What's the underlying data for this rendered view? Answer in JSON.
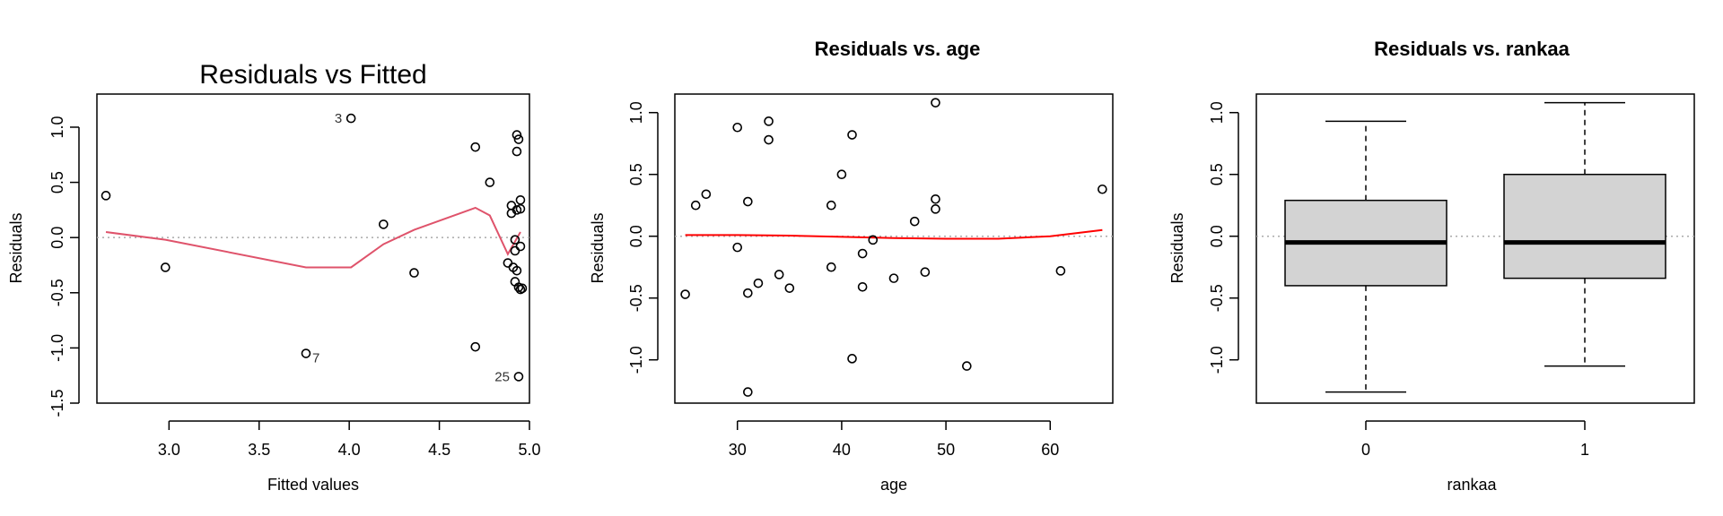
{
  "chart_data": [
    {
      "type": "scatter",
      "title": "Residuals vs Fitted",
      "xlabel": "Fitted values",
      "ylabel": "Residuals",
      "xlim": [
        2.6,
        5.0
      ],
      "ylim": [
        -1.5,
        1.3
      ],
      "xticks": [
        "3.0",
        "3.5",
        "4.0",
        "4.5",
        "5.0"
      ],
      "yticks": [
        "-1.5",
        "-1.0",
        "-0.5",
        "0.0",
        "0.5",
        "1.0"
      ],
      "reference_line": 0,
      "points": [
        {
          "x": 2.65,
          "y": 0.38
        },
        {
          "x": 2.98,
          "y": -0.27
        },
        {
          "x": 3.76,
          "y": -1.05
        },
        {
          "x": 4.01,
          "y": 1.08
        },
        {
          "x": 4.19,
          "y": 0.12
        },
        {
          "x": 4.36,
          "y": -0.32
        },
        {
          "x": 4.7,
          "y": 0.82
        },
        {
          "x": 4.7,
          "y": -0.99
        },
        {
          "x": 4.78,
          "y": 0.5
        },
        {
          "x": 4.88,
          "y": -0.23
        },
        {
          "x": 4.9,
          "y": 0.22
        },
        {
          "x": 4.9,
          "y": 0.29
        },
        {
          "x": 4.91,
          "y": -0.27
        },
        {
          "x": 4.92,
          "y": -0.02
        },
        {
          "x": 4.92,
          "y": -0.12
        },
        {
          "x": 4.92,
          "y": -0.4
        },
        {
          "x": 4.93,
          "y": 0.93
        },
        {
          "x": 4.93,
          "y": 0.78
        },
        {
          "x": 4.93,
          "y": 0.25
        },
        {
          "x": 4.93,
          "y": -0.3
        },
        {
          "x": 4.94,
          "y": -0.45
        },
        {
          "x": 4.94,
          "y": 0.89
        },
        {
          "x": 4.94,
          "y": -1.26
        },
        {
          "x": 4.95,
          "y": 0.34
        },
        {
          "x": 4.95,
          "y": 0.26
        },
        {
          "x": 4.95,
          "y": -0.08
        },
        {
          "x": 4.95,
          "y": -0.47
        },
        {
          "x": 4.96,
          "y": -0.46
        }
      ],
      "smooth": {
        "x": [
          2.65,
          2.98,
          3.76,
          4.01,
          4.19,
          4.36,
          4.7,
          4.78,
          4.88,
          4.95
        ],
        "y": [
          0.05,
          -0.02,
          -0.27,
          -0.27,
          -0.06,
          0.07,
          0.27,
          0.2,
          -0.15,
          0.05
        ]
      },
      "annotations": [
        {
          "text": "3",
          "x": 4.01,
          "y": 1.08
        },
        {
          "text": "7",
          "x": 3.76,
          "y": -1.05
        },
        {
          "text": "25",
          "x": 4.94,
          "y": -1.26
        }
      ]
    },
    {
      "type": "scatter",
      "title": "Residuals vs. age",
      "xlabel": "age",
      "ylabel": "Residuals",
      "xlim": [
        24,
        66
      ],
      "ylim": [
        -1.35,
        1.15
      ],
      "xticks": [
        "30",
        "40",
        "50",
        "60"
      ],
      "yticks": [
        "-1.0",
        "-0.5",
        "0.0",
        "0.5",
        "1.0"
      ],
      "reference_line": 0,
      "points": [
        {
          "x": 25,
          "y": -0.47
        },
        {
          "x": 26,
          "y": 0.25
        },
        {
          "x": 27,
          "y": 0.34
        },
        {
          "x": 30,
          "y": 0.88
        },
        {
          "x": 30,
          "y": -0.09
        },
        {
          "x": 31,
          "y": 0.28
        },
        {
          "x": 31,
          "y": -0.46
        },
        {
          "x": 31,
          "y": -1.26
        },
        {
          "x": 32,
          "y": -0.38
        },
        {
          "x": 33,
          "y": 0.93
        },
        {
          "x": 33,
          "y": 0.78
        },
        {
          "x": 34,
          "y": -0.31
        },
        {
          "x": 35,
          "y": -0.42
        },
        {
          "x": 39,
          "y": 0.25
        },
        {
          "x": 39,
          "y": -0.25
        },
        {
          "x": 40,
          "y": 0.5
        },
        {
          "x": 41,
          "y": 0.82
        },
        {
          "x": 41,
          "y": -0.99
        },
        {
          "x": 42,
          "y": -0.14
        },
        {
          "x": 42,
          "y": -0.41
        },
        {
          "x": 43,
          "y": -0.03
        },
        {
          "x": 45,
          "y": -0.34
        },
        {
          "x": 47,
          "y": 0.12
        },
        {
          "x": 48,
          "y": -0.29
        },
        {
          "x": 49,
          "y": 1.08
        },
        {
          "x": 49,
          "y": 0.3
        },
        {
          "x": 49,
          "y": 0.22
        },
        {
          "x": 52,
          "y": -1.05
        },
        {
          "x": 61,
          "y": -0.28
        },
        {
          "x": 65,
          "y": 0.38
        }
      ],
      "smooth": {
        "x": [
          25,
          30,
          35,
          40,
          45,
          50,
          55,
          60,
          65
        ],
        "y": [
          0.01,
          0.01,
          0.005,
          -0.005,
          -0.015,
          -0.02,
          -0.02,
          0.0,
          0.05
        ]
      }
    },
    {
      "type": "boxplot",
      "title": "Residuals vs. rankaa",
      "xlabel": "rankaa",
      "ylabel": "Residuals",
      "ylim": [
        -1.35,
        1.15
      ],
      "yticks": [
        "-1.0",
        "-0.5",
        "0.0",
        "0.5",
        "1.0"
      ],
      "reference_line": 0,
      "box_fill": "#d3d3d3",
      "boxes": [
        {
          "category": "0",
          "min": -1.26,
          "q1": -0.4,
          "median": -0.05,
          "q3": 0.29,
          "max": 0.93
        },
        {
          "category": "1",
          "min": -1.05,
          "q1": -0.34,
          "median": -0.05,
          "q3": 0.5,
          "max": 1.08
        }
      ]
    }
  ]
}
